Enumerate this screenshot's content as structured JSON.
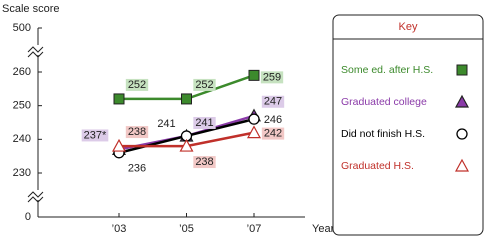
{
  "chart_data": {
    "type": "line",
    "y_label": "Scale score",
    "x_label": "Year",
    "legend_title": "Key",
    "categories": [
      "’03",
      "’05",
      "’07"
    ],
    "ylim": [
      0,
      500
    ],
    "yticks": [
      0,
      230,
      240,
      250,
      260,
      500
    ],
    "axis_breaks": [
      [
        0,
        230
      ],
      [
        260,
        500
      ]
    ],
    "series": [
      {
        "name": "Some ed. after H.S.",
        "color": "#3c8a2c",
        "marker": "square",
        "label_background": "#c6e2c0",
        "values": [
          252,
          252,
          259
        ]
      },
      {
        "name": "Graduated college",
        "color": "#8a3aa8",
        "marker": "triangle",
        "label_background": "#dccbe8",
        "values": [
          237,
          241,
          247
        ],
        "value_labels": [
          "237*",
          "241",
          "247"
        ]
      },
      {
        "name": "Did not finish H.S.",
        "color": "#000000",
        "marker": "circle-open",
        "values": [
          236,
          241,
          246
        ]
      },
      {
        "name": "Graduated H.S.",
        "color": "#c0302a",
        "marker": "triangle-open",
        "label_background": "#f2c8c6",
        "values": [
          238,
          238,
          242
        ]
      }
    ]
  }
}
